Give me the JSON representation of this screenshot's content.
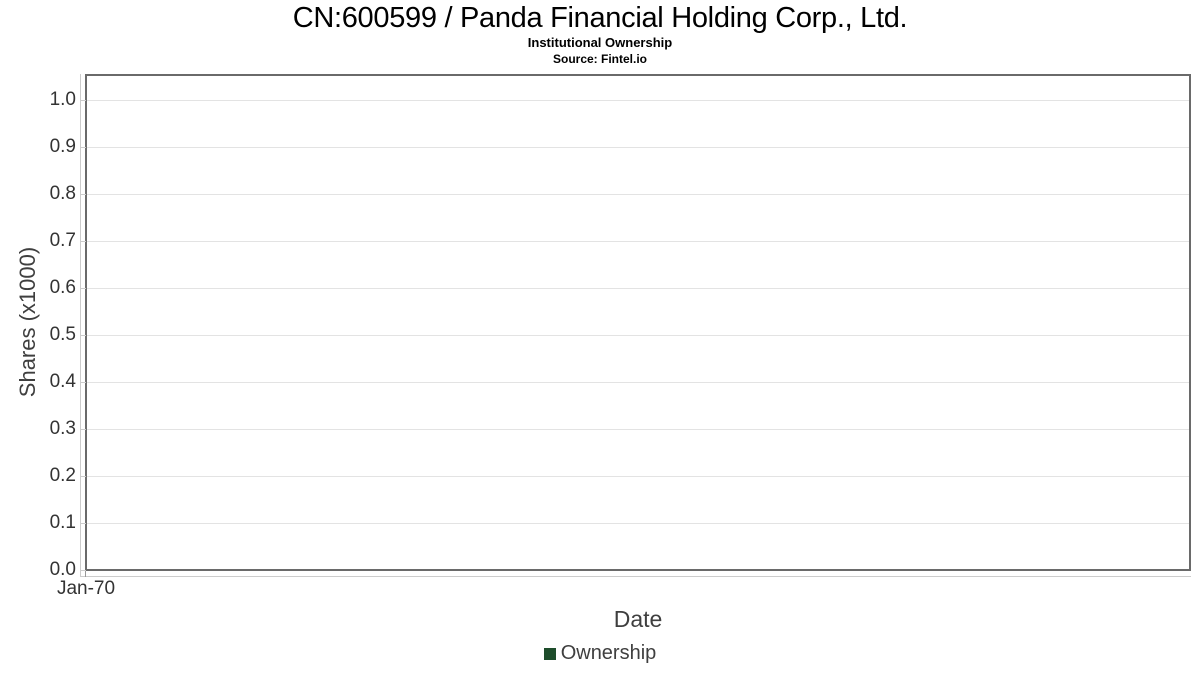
{
  "header": {
    "title": "CN:600599 / Panda Financial Holding Corp., Ltd.",
    "subtitle": "Institutional Ownership",
    "source": "Source: Fintel.io"
  },
  "axes": {
    "x": {
      "label": "Date",
      "tick_labels": [
        "Jan-70"
      ]
    },
    "y": {
      "label": "Shares (x1000)",
      "tick_labels": [
        "1.0",
        "0.9",
        "0.8",
        "0.7",
        "0.6",
        "0.5",
        "0.4",
        "0.3",
        "0.2",
        "0.1",
        "0.0"
      ]
    }
  },
  "legend": {
    "items": [
      {
        "label": "Ownership",
        "color": "#1e4d2b"
      }
    ]
  },
  "colors": {
    "background": "#ffffff",
    "title": "#000000",
    "plot_border": "#6a6a6a",
    "grid_line": "#e3e3e3",
    "axis_offset_line": "#cccccc",
    "tick_label": "#333333",
    "axis_title": "#3f3f3f",
    "series_ownership": "#1e4d2b"
  },
  "chart_data": {
    "type": "line",
    "title": "CN:600599 / Panda Financial Holding Corp., Ltd.",
    "subtitle": "Institutional Ownership",
    "source": "Source: Fintel.io",
    "xlabel": "Date",
    "ylabel": "Shares (x1000)",
    "x_tick_labels": [
      "Jan-70"
    ],
    "y_ticks": [
      0.0,
      0.1,
      0.2,
      0.3,
      0.4,
      0.5,
      0.6,
      0.7,
      0.8,
      0.9,
      1.0
    ],
    "ylim": [
      0.0,
      1.05
    ],
    "grid": true,
    "legend_position": "bottom-center",
    "series": [
      {
        "name": "Ownership",
        "color": "#1e4d2b",
        "x": [],
        "y": []
      }
    ]
  }
}
